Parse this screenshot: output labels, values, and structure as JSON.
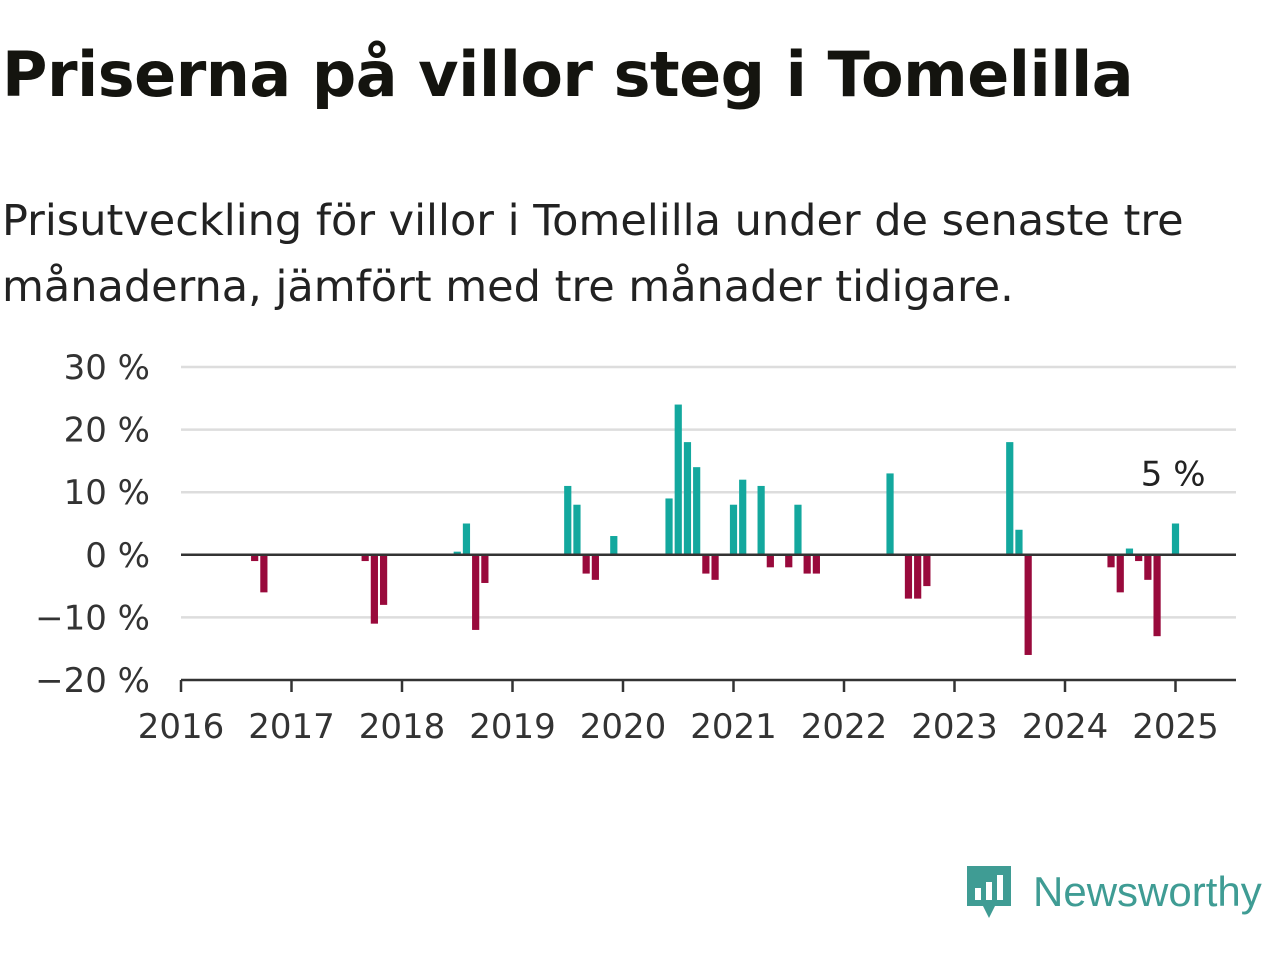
{
  "header": {
    "title": "Priserna på villor steg i Tomelilla",
    "subtitle": "Prisutveckling för villor i Tomelilla under de senaste tre månaderna, jämfört med tre månader tidigare."
  },
  "brand": {
    "name": "Newsworthy",
    "icon": "newsworthy-logo-icon",
    "color": "#3f9c94"
  },
  "colors": {
    "positive": "#13a89e",
    "negative": "#990a3c",
    "grid": "#dddddd",
    "axis": "#333333"
  },
  "chart_data": {
    "type": "bar",
    "title": "",
    "xlabel": "",
    "ylabel": "",
    "ylim": [
      -20,
      30
    ],
    "xlim": [
      "2016-01",
      "2025-06"
    ],
    "y_ticks": [
      30,
      20,
      10,
      0,
      -10,
      -20
    ],
    "y_tick_labels": [
      "30 %",
      "20 %",
      "10 %",
      "0 %",
      "−10 %",
      "−20 %"
    ],
    "x_tick_labels": [
      "2016",
      "2017",
      "2018",
      "2019",
      "2020",
      "2021",
      "2022",
      "2023",
      "2024",
      "2025"
    ],
    "grid": true,
    "series": [
      {
        "values": [
          {
            "x": "2016-09",
            "y": -1
          },
          {
            "x": "2016-10",
            "y": -6
          },
          {
            "x": "2017-09",
            "y": -1
          },
          {
            "x": "2017-10",
            "y": -11
          },
          {
            "x": "2017-11",
            "y": -8
          },
          {
            "x": "2018-07",
            "y": 0.5
          },
          {
            "x": "2018-08",
            "y": 5
          },
          {
            "x": "2018-09",
            "y": -12
          },
          {
            "x": "2018-10",
            "y": -4.5
          },
          {
            "x": "2019-07",
            "y": 11
          },
          {
            "x": "2019-08",
            "y": 8
          },
          {
            "x": "2019-09",
            "y": -3
          },
          {
            "x": "2019-10",
            "y": -4
          },
          {
            "x": "2019-12",
            "y": 3
          },
          {
            "x": "2020-06",
            "y": 9
          },
          {
            "x": "2020-07",
            "y": 24
          },
          {
            "x": "2020-08",
            "y": 18
          },
          {
            "x": "2020-09",
            "y": 14
          },
          {
            "x": "2020-10",
            "y": -3
          },
          {
            "x": "2020-11",
            "y": -4
          },
          {
            "x": "2021-01",
            "y": 8
          },
          {
            "x": "2021-02",
            "y": 12
          },
          {
            "x": "2021-04",
            "y": 11
          },
          {
            "x": "2021-05",
            "y": -2
          },
          {
            "x": "2021-07",
            "y": -2
          },
          {
            "x": "2021-08",
            "y": 8
          },
          {
            "x": "2021-09",
            "y": -3
          },
          {
            "x": "2021-10",
            "y": -3
          },
          {
            "x": "2022-06",
            "y": 13
          },
          {
            "x": "2022-08",
            "y": -7
          },
          {
            "x": "2022-09",
            "y": -7
          },
          {
            "x": "2022-10",
            "y": -5
          },
          {
            "x": "2023-07",
            "y": 18
          },
          {
            "x": "2023-08",
            "y": 4
          },
          {
            "x": "2023-09",
            "y": -16
          },
          {
            "x": "2024-06",
            "y": -2
          },
          {
            "x": "2024-07",
            "y": -6
          },
          {
            "x": "2024-08",
            "y": 1
          },
          {
            "x": "2024-09",
            "y": -1
          },
          {
            "x": "2024-10",
            "y": -4
          },
          {
            "x": "2024-11",
            "y": -13
          },
          {
            "x": "2025-01",
            "y": 5
          }
        ]
      }
    ],
    "annotations": [
      {
        "x": "2025-01",
        "y": 5,
        "text": "5 %"
      }
    ]
  }
}
